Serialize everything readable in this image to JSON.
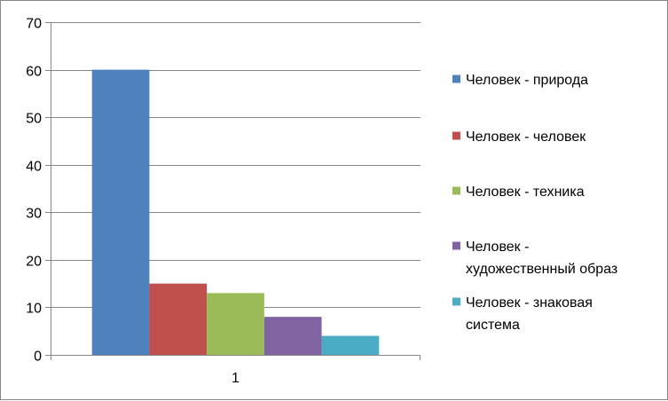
{
  "chart_data": {
    "type": "bar",
    "categories": [
      "1"
    ],
    "series": [
      {
        "name": "Человек - природа",
        "name_lines": [
          "Человек - природа"
        ],
        "values": [
          60
        ],
        "color": "#4F81BD"
      },
      {
        "name": "Человек - человек",
        "name_lines": [
          "Человек - человек"
        ],
        "values": [
          15
        ],
        "color": "#C0504D"
      },
      {
        "name": "Человек - техника",
        "name_lines": [
          "Человек - техника"
        ],
        "values": [
          13
        ],
        "color": "#9BBB59"
      },
      {
        "name": "Человек - художественный образ",
        "name_lines": [
          "Человек -",
          "художественный образ"
        ],
        "values": [
          8
        ],
        "color": "#8064A2"
      },
      {
        "name": "Человек - знаковая система",
        "name_lines": [
          "Человек - знаковая",
          "система"
        ],
        "values": [
          4
        ],
        "color": "#4BACC6"
      }
    ],
    "ylim": [
      0,
      70
    ],
    "yticks": [
      0,
      10,
      20,
      30,
      40,
      50,
      60,
      70
    ],
    "grid": true,
    "legend_position": "right",
    "title": "",
    "xlabel": "",
    "ylabel": ""
  }
}
